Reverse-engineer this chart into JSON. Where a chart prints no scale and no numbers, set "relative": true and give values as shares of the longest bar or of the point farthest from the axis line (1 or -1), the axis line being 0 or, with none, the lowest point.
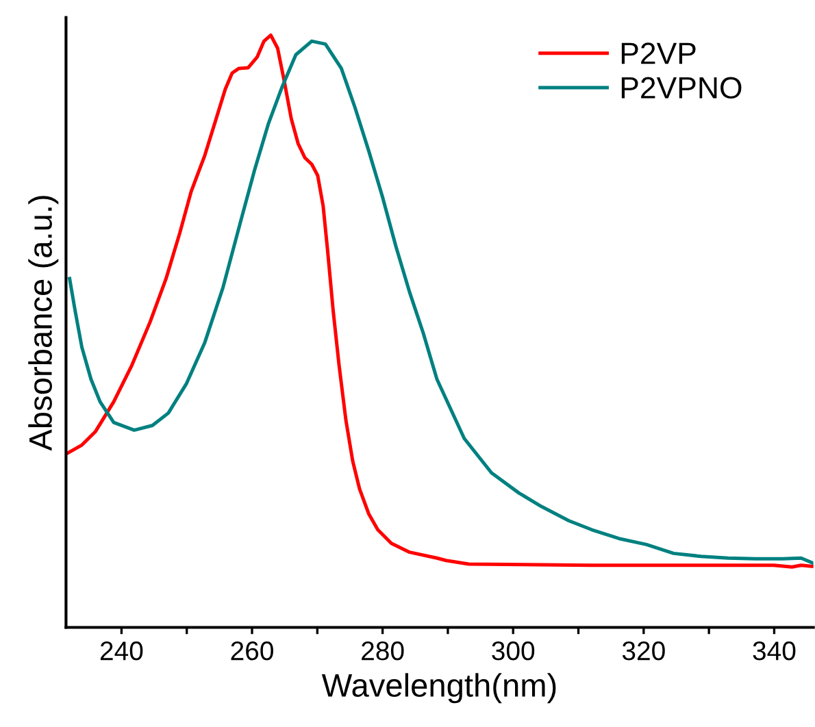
{
  "chart_data": {
    "type": "line",
    "xlabel": "Wavelength(nm)",
    "ylabel": "Absorbance (a.u.)",
    "relative": true,
    "xlim": [
      231.5,
      346
    ],
    "xticks": [
      240,
      {
        "value": 250,
        "label": null
      },
      260,
      {
        "value": 270,
        "label": null
      },
      280,
      {
        "value": 290,
        "label": null
      },
      300,
      {
        "value": 310,
        "label": null
      },
      320,
      {
        "value": 330,
        "label": null
      },
      340
    ],
    "legend": "top right",
    "grid": false,
    "marker": "none",
    "line_style": "solid",
    "series": [
      {
        "name": "P2VP",
        "color": "#ff0000",
        "x": [
          231.7,
          233.93,
          236.03,
          238.81,
          241.6,
          244.39,
          246.83,
          248.93,
          250.67,
          252.76,
          254.5,
          255.9,
          256.95,
          257.99,
          259.39,
          260.78,
          261.83,
          262.87,
          263.92,
          264.96,
          266.01,
          267.06,
          268.1,
          269.15,
          270.06,
          270.89,
          271.59,
          272.43,
          273.33,
          274.38,
          275.42,
          276.47,
          277.87,
          279.26,
          281.35,
          284.14,
          288.33,
          289.72,
          293.21,
          301.58,
          312.04,
          326.0,
          339.93,
          342.72,
          344.12,
          345.86
        ],
        "values": [
          0.294,
          0.308,
          0.331,
          0.381,
          0.443,
          0.516,
          0.589,
          0.666,
          0.736,
          0.797,
          0.859,
          0.909,
          0.936,
          0.944,
          0.945,
          0.963,
          0.99,
          1.0,
          0.978,
          0.921,
          0.859,
          0.817,
          0.793,
          0.782,
          0.763,
          0.712,
          0.635,
          0.535,
          0.443,
          0.35,
          0.281,
          0.234,
          0.192,
          0.165,
          0.142,
          0.127,
          0.117,
          0.113,
          0.107,
          0.106,
          0.105,
          0.105,
          0.105,
          0.102,
          0.105,
          0.103
        ]
      },
      {
        "name": "P2VPNO",
        "color": "#008080",
        "x": [
          232.05,
          232.89,
          233.93,
          235.33,
          236.72,
          238.81,
          241.95,
          244.74,
          247.18,
          249.97,
          252.76,
          255.55,
          258.34,
          260.43,
          262.52,
          264.62,
          266.71,
          269.15,
          271.24,
          273.68,
          275.77,
          277.87,
          279.96,
          282.05,
          284.14,
          286.23,
          288.33,
          292.51,
          296.69,
          300.88,
          304.37,
          308.55,
          312.04,
          316.22,
          320.4,
          324.59,
          328.77,
          332.96,
          337.14,
          341.33,
          344.12,
          345.86
        ],
        "values": [
          0.589,
          0.535,
          0.473,
          0.419,
          0.381,
          0.346,
          0.333,
          0.341,
          0.362,
          0.412,
          0.481,
          0.574,
          0.689,
          0.774,
          0.851,
          0.913,
          0.967,
          0.99,
          0.985,
          0.944,
          0.878,
          0.805,
          0.728,
          0.643,
          0.566,
          0.497,
          0.419,
          0.319,
          0.261,
          0.227,
          0.204,
          0.18,
          0.165,
          0.15,
          0.14,
          0.125,
          0.12,
          0.117,
          0.116,
          0.116,
          0.117,
          0.109
        ]
      }
    ]
  }
}
